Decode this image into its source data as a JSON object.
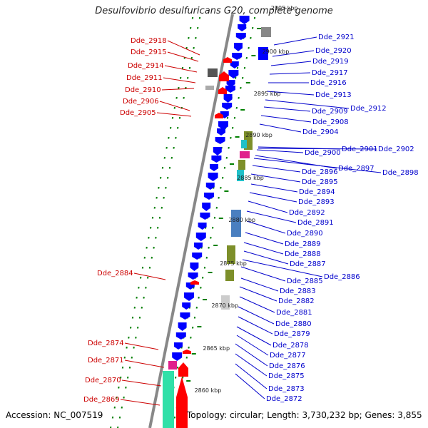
{
  "title": "Desulfovibrio desulfuricans G20, complete genome",
  "accession": "Accession: NC_007519",
  "topology": "Topology: circular; Length: 3,730,232 bp; Genes: 3,855",
  "colors": {
    "forward": "#ff0000",
    "reverse": "#0000ff",
    "backbone": "#888888",
    "ticks": "#008000",
    "left_label": "#cc0000",
    "right_label": "#0000cc",
    "cog_olive": "#7d8f2a",
    "cog_cyan": "#20c0c8",
    "cog_magenta": "#e0208c",
    "cog_steel": "#4a7fc0",
    "cog_gray": "#888888",
    "cog_mint": "#30e0a8"
  },
  "scale_labels": [
    "2905 kbp",
    "2900 kbp",
    "2895 kbp",
    "2890 kbp",
    "2885 kbp",
    "2880 kbp",
    "2875 kbp",
    "2870 kbp",
    "2865 kbp",
    "2860 kbp"
  ],
  "left_genes": [
    "Dde_2918",
    "Dde_2915",
    "Dde_2914",
    "Dde_2911",
    "Dde_2910",
    "Dde_2906",
    "Dde_2905",
    "Dde_2884",
    "Dde_2874",
    "Dde_2871",
    "Dde_2870",
    "Dde_2869"
  ],
  "right_genes": [
    "Dde_2921",
    "Dde_2920",
    "Dde_2919",
    "Dde_2917",
    "Dde_2916",
    "Dde_2913",
    "Dde_2912",
    "Dde_2909",
    "Dde_2908",
    "Dde_2904",
    "Dde_2901",
    "Dde_2902",
    "Dde_2900",
    "Dde_2897",
    "Dde_2898",
    "Dde_2896",
    "Dde_2895",
    "Dde_2894",
    "Dde_2893",
    "Dde_2892",
    "Dde_2891",
    "Dde_2890",
    "Dde_2889",
    "Dde_2888",
    "Dde_2887",
    "Dde_2886",
    "Dde_2885",
    "Dde_2883",
    "Dde_2882",
    "Dde_2881",
    "Dde_2880",
    "Dde_2879",
    "Dde_2878",
    "Dde_2877",
    "Dde_2876",
    "Dde_2875",
    "Dde_2873",
    "Dde_2872"
  ]
}
